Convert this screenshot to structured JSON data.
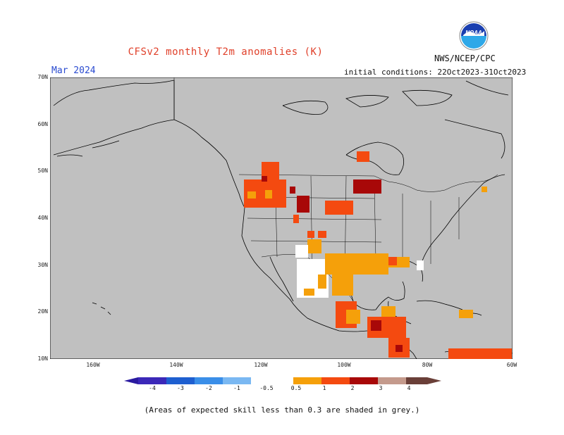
{
  "title": "CFSv2 monthly T2m anomalies (K)",
  "valid_month": "Mar 2024",
  "producer": "NWS/NCEP/CPC",
  "logo_text": "NOAA",
  "initial_conditions": "initial conditions: 22Oct2023-31Oct2023",
  "lat_labels": [
    "70N",
    "60N",
    "50N",
    "40N",
    "30N",
    "20N",
    "10N"
  ],
  "lon_labels": [
    "160W",
    "140W",
    "120W",
    "100W",
    "80W",
    "60W"
  ],
  "colorbar": {
    "ticks": [
      "-4",
      "-3",
      "-2",
      "-1",
      "-0.5",
      "0.5",
      "1",
      "2",
      "3",
      "4"
    ],
    "colors": [
      "#3b28b8",
      "#1e5fd0",
      "#3a8ee8",
      "#7ab8f2",
      "#ffffff",
      "#f5a00a",
      "#f44a10",
      "#a80808",
      "#c49a8c",
      "#6a3f38"
    ]
  },
  "background_grey": "#c0c0c0",
  "footnote": "(Areas of expected skill less than 0.3 are shaded in grey.)"
}
